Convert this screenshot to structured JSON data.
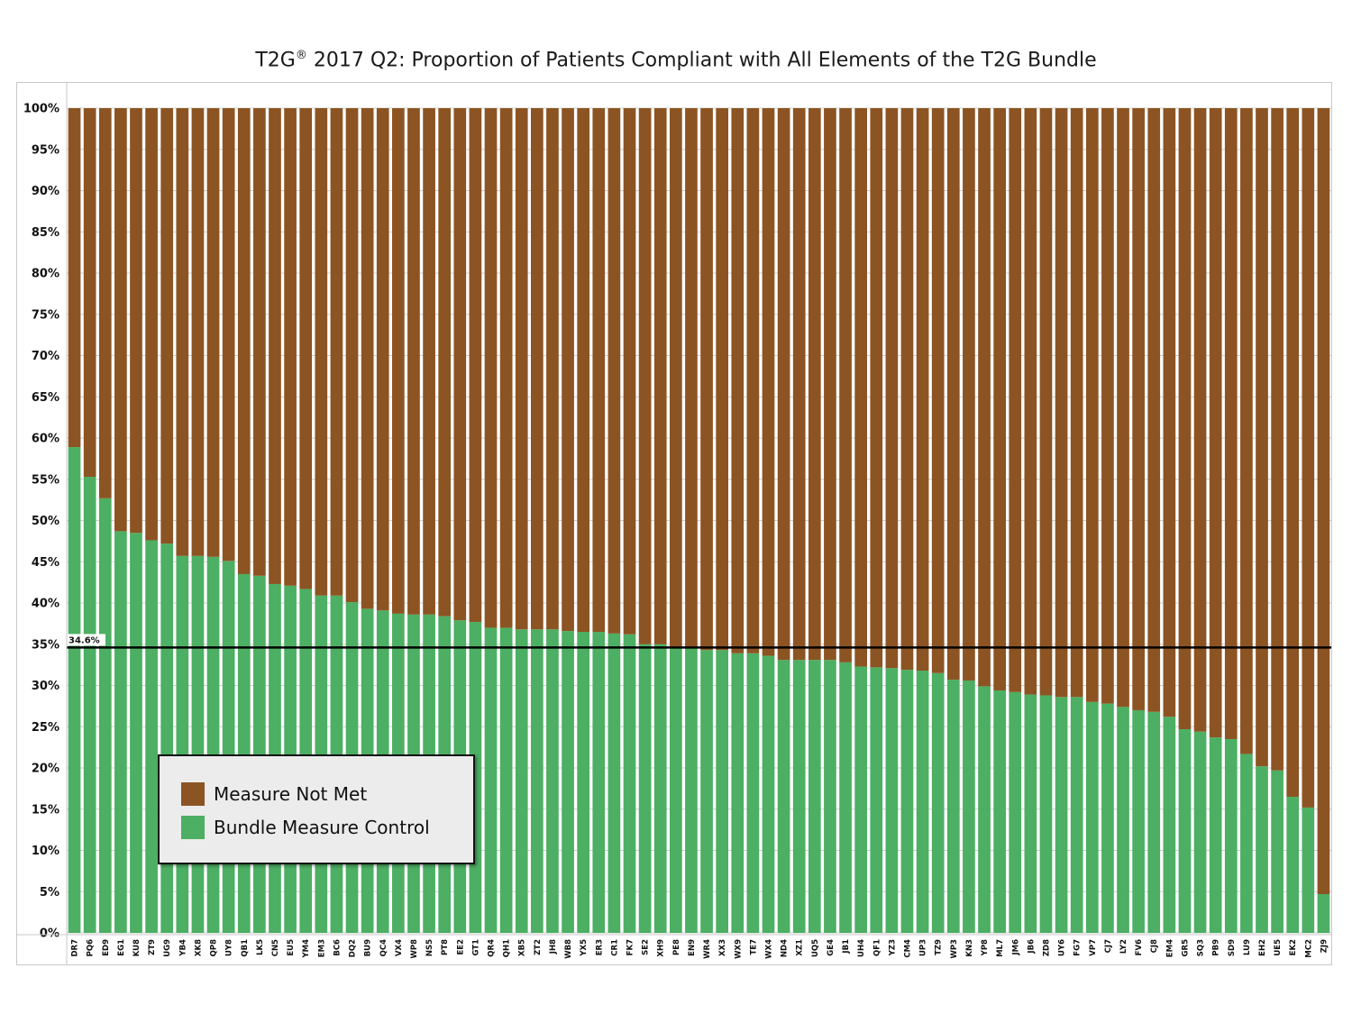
{
  "title_text": "T2G",
  "title_mark": "®",
  "title_rest": " 2017 Q2: Proportion of Patients Compliant with All Elements of the T2G Bundle",
  "colors": {
    "met": "#4caf63",
    "not_met": "#8c5423",
    "avg_line": "#000000",
    "grid": "#d0d0d0"
  },
  "legend": [
    {
      "label": "Measure Not Met",
      "color": "#8c5423"
    },
    {
      "label": "Bundle Measure Control",
      "color": "#4caf63"
    }
  ],
  "chart_data": {
    "type": "bar",
    "stacked": true,
    "yticks": [
      "0%",
      "5%",
      "10%",
      "15%",
      "20%",
      "25%",
      "30%",
      "35%",
      "40%",
      "45%",
      "50%",
      "55%",
      "60%",
      "65%",
      "70%",
      "75%",
      "80%",
      "85%",
      "90%",
      "95%",
      "100%"
    ],
    "ylim": [
      0,
      100
    ],
    "grid": true,
    "legend_position": "bottom-left",
    "average": {
      "value": 34.6,
      "label": "34.6%"
    },
    "categories": [
      "DR7",
      "PQ6",
      "ED9",
      "EG1",
      "KU8",
      "ZT9",
      "UG9",
      "YB4",
      "XK8",
      "QP8",
      "UY8",
      "QB1",
      "LK5",
      "CN5",
      "EU5",
      "YM4",
      "EM3",
      "BC6",
      "DQ2",
      "BU9",
      "QC4",
      "VX4",
      "WP8",
      "NS5",
      "PT8",
      "EE2",
      "GT1",
      "QR4",
      "QH1",
      "XB5",
      "ZT2",
      "JH8",
      "WB8",
      "YX5",
      "ER3",
      "CR1",
      "FK7",
      "SE2",
      "XH9",
      "PE8",
      "EN9",
      "WR4",
      "XX3",
      "WX9",
      "TE7",
      "WX4",
      "ND4",
      "XZ1",
      "UQ5",
      "GE4",
      "JB1",
      "UH4",
      "QF1",
      "YZ3",
      "CM4",
      "UP3",
      "TZ9",
      "WP3",
      "KN3",
      "YP8",
      "ML7",
      "JM6",
      "JB6",
      "ZD8",
      "UY6",
      "FG7",
      "VP7",
      "CJ7",
      "LY2",
      "FV6",
      "CJ8",
      "EM4",
      "GR5",
      "SQ3",
      "PB9",
      "SD9",
      "LU9",
      "EH2",
      "UE5",
      "EK2",
      "MC2",
      "ZJ9"
    ],
    "series": [
      {
        "name": "Bundle Measure Control",
        "values": [
          58.9,
          55.3,
          52.7,
          48.7,
          48.5,
          47.6,
          47.2,
          45.7,
          45.7,
          45.6,
          45.1,
          43.5,
          43.3,
          42.3,
          42.1,
          41.7,
          40.9,
          40.9,
          40.1,
          39.3,
          39.1,
          38.7,
          38.6,
          38.6,
          38.4,
          37.9,
          37.7,
          37.0,
          37.0,
          36.8,
          36.8,
          36.8,
          36.6,
          36.5,
          36.5,
          36.3,
          36.2,
          35.0,
          35.0,
          34.7,
          34.5,
          34.3,
          34.3,
          33.9,
          33.9,
          33.6,
          33.1,
          33.1,
          33.1,
          33.1,
          32.8,
          32.3,
          32.2,
          32.1,
          31.9,
          31.8,
          31.5,
          30.7,
          30.6,
          29.9,
          29.4,
          29.2,
          28.9,
          28.8,
          28.6,
          28.6,
          28.0,
          27.8,
          27.4,
          27.0,
          26.8,
          26.2,
          24.7,
          24.4,
          23.7,
          23.5,
          21.7,
          20.2,
          19.7,
          16.5,
          15.2,
          4.7
        ]
      },
      {
        "name": "Measure Not Met",
        "values": [
          41.1,
          44.7,
          47.3,
          51.3,
          51.5,
          52.4,
          52.8,
          54.3,
          54.3,
          54.4,
          54.9,
          56.5,
          56.7,
          57.7,
          57.9,
          58.3,
          59.1,
          59.1,
          59.9,
          60.7,
          60.9,
          61.3,
          61.4,
          61.4,
          61.6,
          62.1,
          62.3,
          63.0,
          63.0,
          63.2,
          63.2,
          63.2,
          63.4,
          63.5,
          63.5,
          63.7,
          63.8,
          65.0,
          65.0,
          65.3,
          65.5,
          65.7,
          65.7,
          66.1,
          66.1,
          66.4,
          66.9,
          66.9,
          66.9,
          66.9,
          67.2,
          67.7,
          67.8,
          67.9,
          68.1,
          68.2,
          68.5,
          69.3,
          69.4,
          70.1,
          70.6,
          70.8,
          71.1,
          71.2,
          71.4,
          71.4,
          72.0,
          72.2,
          72.6,
          73.0,
          73.2,
          73.8,
          75.3,
          75.6,
          76.3,
          76.5,
          78.3,
          79.8,
          80.3,
          83.5,
          84.8,
          95.3
        ]
      }
    ]
  }
}
